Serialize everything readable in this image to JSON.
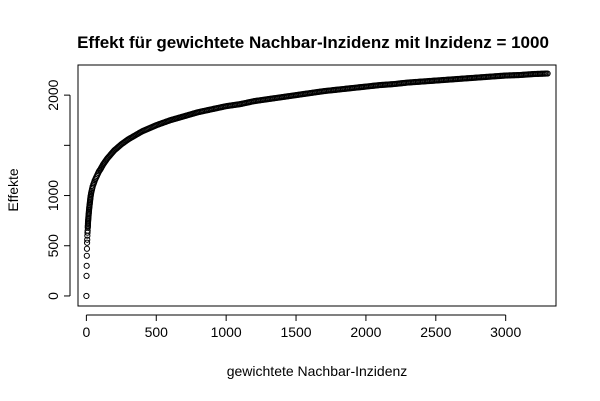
{
  "chart_data": {
    "type": "scatter",
    "title": "Effekt für gewichtete Nachbar-Inzidenz mit Inzidenz = 1000",
    "xlabel": "gewichtete Nachbar-Inzidenz",
    "ylabel": "Effekte",
    "xlim": [
      -60,
      3360
    ],
    "ylim": [
      -100,
      2300
    ],
    "x_ticks": [
      {
        "value": 0,
        "label": "0"
      },
      {
        "value": 500,
        "label": "500"
      },
      {
        "value": 1000,
        "label": "1000"
      },
      {
        "value": 1500,
        "label": "1500"
      },
      {
        "value": 2000,
        "label": "2000"
      },
      {
        "value": 2500,
        "label": "2500"
      },
      {
        "value": 3000,
        "label": "3000"
      }
    ],
    "y_ticks": [
      {
        "value": 0,
        "label": "0"
      },
      {
        "value": 500,
        "label": "500"
      },
      {
        "value": 1000,
        "label": "1000"
      },
      {
        "value": 1500,
        "label": ""
      },
      {
        "value": 2000,
        "label": "2000"
      }
    ],
    "grid": false,
    "marker": "open-circle",
    "series": [
      {
        "x": [
          0,
          1,
          2,
          3,
          4,
          5,
          6,
          7,
          8,
          9,
          10,
          12,
          15,
          18,
          20,
          25,
          30,
          35,
          40,
          45,
          50,
          60,
          70,
          80,
          90,
          100,
          120,
          150,
          200,
          250,
          300,
          350,
          400,
          450,
          500,
          600,
          700,
          800,
          900,
          1000,
          1100,
          1200,
          1300,
          1400,
          1500,
          1600,
          1700,
          1800,
          1900,
          2000,
          2100,
          2200,
          2300,
          2400,
          2500,
          2600,
          2700,
          2800,
          2900,
          3000,
          3100,
          3200,
          3300
        ],
        "y": [
          0,
          200,
          300,
          400,
          470,
          530,
          560,
          600,
          630,
          650,
          680,
          740,
          790,
          840,
          870,
          930,
          990,
          1030,
          1060,
          1090,
          1110,
          1150,
          1180,
          1210,
          1240,
          1260,
          1310,
          1370,
          1450,
          1510,
          1560,
          1600,
          1640,
          1670,
          1700,
          1750,
          1790,
          1830,
          1860,
          1890,
          1910,
          1940,
          1960,
          1980,
          2000,
          2020,
          2040,
          2055,
          2070,
          2085,
          2100,
          2110,
          2125,
          2135,
          2145,
          2155,
          2165,
          2175,
          2185,
          2195,
          2200,
          2210,
          2215
        ]
      }
    ]
  }
}
